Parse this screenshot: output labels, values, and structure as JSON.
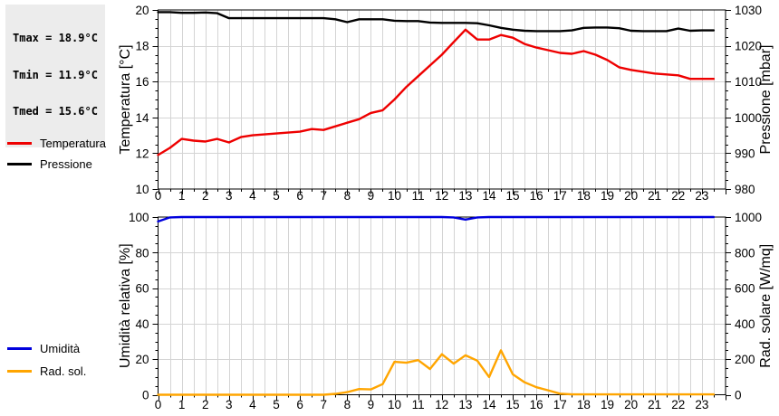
{
  "stats_box": {
    "lines": [
      "Tmax = 18.9°C",
      "Tmin = 11.9°C",
      "Tmed = 15.6°C"
    ]
  },
  "colors": {
    "temperature": "#ee0000",
    "pressure": "#000000",
    "humidity": "#0000dd",
    "radiation": "#ffa500",
    "grid": "#d4d4d4",
    "frame": "#000000",
    "stats_bg": "#ececec"
  },
  "legends": {
    "top": [
      {
        "label": "Temperatura",
        "color_key": "temperature"
      },
      {
        "label": "Pressione",
        "color_key": "pressure"
      }
    ],
    "bottom": [
      {
        "label": "Umidità",
        "color_key": "humidity"
      },
      {
        "label": "Rad. sol.",
        "color_key": "radiation"
      }
    ]
  },
  "chart_data": [
    {
      "type": "line",
      "name": "temperature-pressure",
      "x_start": 0,
      "x_step": 0.5,
      "x_range": [
        0,
        24
      ],
      "x_major": 1,
      "x_minor": 0.5,
      "x_tick_labels": [
        "0",
        "1",
        "2",
        "3",
        "4",
        "5",
        "6",
        "7",
        "8",
        "9",
        "10",
        "11",
        "12",
        "13",
        "14",
        "15",
        "16",
        "17",
        "18",
        "19",
        "20",
        "21",
        "22",
        "23"
      ],
      "grid": true,
      "left_axis": {
        "label": "Temperatura [°C]",
        "range": [
          10,
          20
        ],
        "major": 2,
        "minor": 0.5,
        "tick_labels": [
          "10",
          "12",
          "14",
          "16",
          "18",
          "20"
        ]
      },
      "right_axis": {
        "label": "Pressione [mbar]",
        "range": [
          980,
          1030
        ],
        "major": 10,
        "minor": 2.5,
        "tick_labels": [
          "980",
          "990",
          "1000",
          "1010",
          "1020",
          "1030"
        ]
      },
      "series": [
        {
          "name": "Temperatura",
          "axis": "left",
          "color_key": "temperature",
          "values": [
            11.9,
            12.3,
            12.8,
            12.7,
            12.65,
            12.8,
            12.6,
            12.9,
            13.0,
            13.05,
            13.1,
            13.15,
            13.2,
            13.35,
            13.3,
            13.5,
            13.7,
            13.9,
            14.25,
            14.4,
            15.0,
            15.7,
            16.3,
            16.9,
            17.5,
            18.2,
            18.9,
            18.35,
            18.35,
            18.6,
            18.45,
            18.1,
            17.9,
            17.75,
            17.6,
            17.55,
            17.7,
            17.5,
            17.2,
            16.8,
            16.65,
            16.55,
            16.45,
            16.4,
            16.35,
            16.15,
            16.15,
            16.15
          ]
        },
        {
          "name": "Pressione",
          "axis": "right",
          "color_key": "pressure",
          "values": [
            1029.4,
            1029.4,
            1029.2,
            1029.2,
            1029.3,
            1029.1,
            1027.7,
            1027.7,
            1027.7,
            1027.7,
            1027.7,
            1027.7,
            1027.7,
            1027.7,
            1027.7,
            1027.4,
            1026.6,
            1027.4,
            1027.4,
            1027.4,
            1027.0,
            1026.9,
            1026.9,
            1026.5,
            1026.4,
            1026.4,
            1026.4,
            1026.3,
            1025.7,
            1025.0,
            1024.5,
            1024.2,
            1024.1,
            1024.1,
            1024.1,
            1024.3,
            1025.0,
            1025.1,
            1025.1,
            1024.9,
            1024.2,
            1024.1,
            1024.1,
            1024.1,
            1024.8,
            1024.2,
            1024.3,
            1024.3
          ]
        }
      ]
    },
    {
      "type": "line",
      "name": "humidity-radiation",
      "x_start": 0,
      "x_step": 0.5,
      "x_range": [
        0,
        24
      ],
      "x_major": 1,
      "x_minor": 0.5,
      "x_tick_labels": [
        "0",
        "1",
        "2",
        "3",
        "4",
        "5",
        "6",
        "7",
        "8",
        "9",
        "10",
        "11",
        "12",
        "13",
        "14",
        "15",
        "16",
        "17",
        "18",
        "19",
        "20",
        "21",
        "22",
        "23"
      ],
      "grid": true,
      "left_axis": {
        "label": "Umidità relativa [%]",
        "range": [
          0,
          100
        ],
        "major": 20,
        "minor": 5,
        "tick_labels": [
          "0",
          "20",
          "40",
          "60",
          "80",
          "100"
        ]
      },
      "right_axis": {
        "label": "Rad. solare [W/mq]",
        "range": [
          0,
          1000
        ],
        "major": 200,
        "minor": 50,
        "tick_labels": [
          "0",
          "200",
          "400",
          "600",
          "800",
          "1000"
        ]
      },
      "series": [
        {
          "name": "Umidità",
          "axis": "left",
          "color_key": "humidity",
          "values": [
            97.5,
            99.8,
            100,
            100,
            100,
            100,
            100,
            100,
            100,
            100,
            100,
            100,
            100,
            100,
            100,
            100,
            100,
            100,
            100,
            100,
            100,
            100,
            100,
            100,
            100,
            99.8,
            98.6,
            99.8,
            100,
            100,
            100,
            100,
            100,
            100,
            100,
            100,
            100,
            100,
            100,
            100,
            100,
            100,
            100,
            100,
            100,
            100,
            100,
            100
          ]
        },
        {
          "name": "Rad. sol.",
          "axis": "right",
          "color_key": "radiation",
          "values": [
            0,
            0,
            0,
            0,
            0,
            0,
            0,
            0,
            0,
            0,
            0,
            0,
            0,
            0,
            0,
            5,
            15,
            32,
            30,
            60,
            185,
            180,
            195,
            145,
            228,
            175,
            222,
            192,
            100,
            250,
            115,
            70,
            42,
            25,
            6,
            2,
            2,
            2,
            2,
            2,
            2,
            2,
            2,
            2,
            2,
            2,
            2,
            2
          ]
        }
      ]
    }
  ]
}
